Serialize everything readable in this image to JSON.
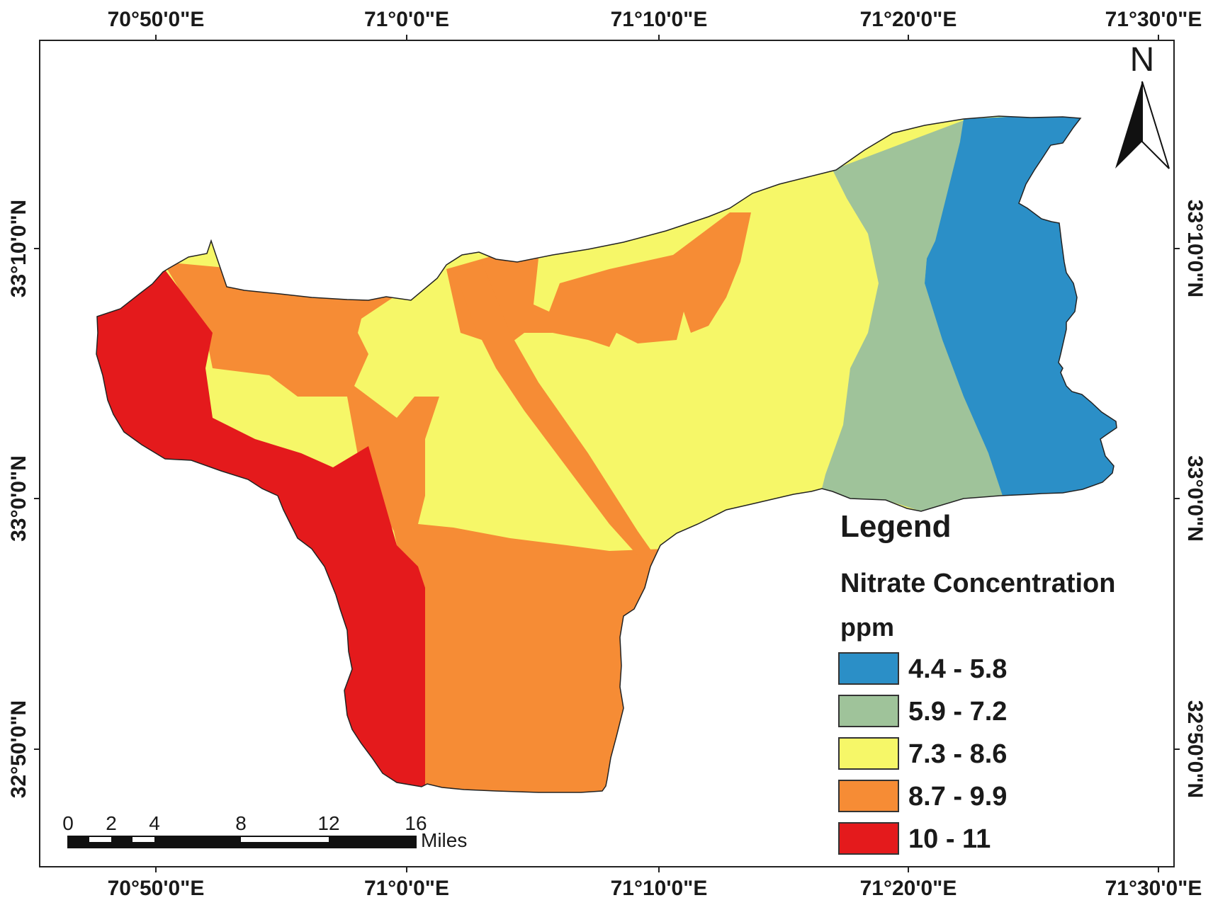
{
  "map": {
    "graticule": {
      "top_labels": [
        "70°50'0\"E",
        "71°0'0\"E",
        "71°10'0\"E",
        "71°20'0\"E",
        "71°30'0\"E"
      ],
      "bottom_labels": [
        "70°50'0\"E",
        "71°0'0\"E",
        "71°10'0\"E",
        "71°20'0\"E",
        "71°30'0\"E"
      ],
      "left_labels": [
        "33°10'0\"N",
        "33°0'0\"N",
        "32°50'0\"N"
      ],
      "right_labels": [
        "33°10'0\"N",
        "33°0'0\"N",
        "32°50'0\"N"
      ]
    },
    "north_arrow": {
      "label": "N"
    },
    "legend": {
      "title": "Legend",
      "subtitle": "Nitrate Concentration",
      "unit": "ppm",
      "classes": [
        {
          "label": "4.4 - 5.8",
          "color": "#2b8fc7"
        },
        {
          "label": "5.9 - 7.2",
          "color": "#9fc39a"
        },
        {
          "label": "7.3 - 8.6",
          "color": "#f6f768"
        },
        {
          "label": "8.7 - 9.9",
          "color": "#f68c35"
        },
        {
          "label": "10 - 11",
          "color": "#e41a1c"
        }
      ]
    },
    "scale_bar": {
      "ticks": [
        "0",
        "2",
        "4",
        "8",
        "12",
        "16"
      ],
      "unit": "Miles"
    }
  }
}
